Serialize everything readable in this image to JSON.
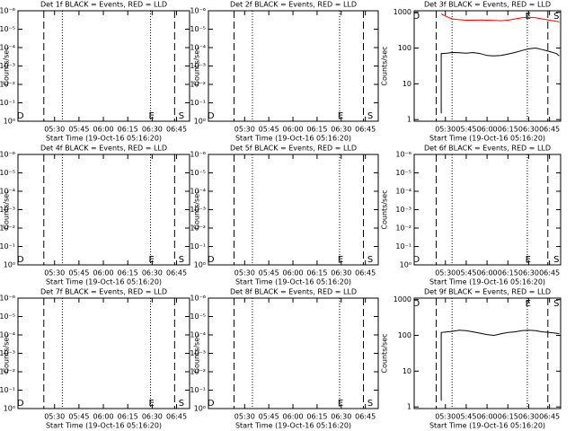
{
  "chart_data": [
    {
      "type": "line",
      "title": "Det 1f BLACK = Events, RED = LLD",
      "xlabel": "Start Time (19-Oct-16 05:16:20)",
      "ylabel": "Counts/sec",
      "log_scale": true,
      "xlim": [
        307.5,
        413
      ],
      "xticks": [
        {
          "value": 330,
          "label": "05:30"
        },
        {
          "value": 345,
          "label": "05:45"
        },
        {
          "value": 360,
          "label": "06:00"
        },
        {
          "value": 375,
          "label": "06:15"
        },
        {
          "value": 390,
          "label": "06:30"
        },
        {
          "value": 405,
          "label": "06:45"
        }
      ],
      "ylim": [
        1,
        1e-06
      ],
      "yticks": [
        {
          "value": 1,
          "label": "10⁰"
        },
        {
          "value": 0.1,
          "label": "10⁻¹"
        },
        {
          "value": 0.01,
          "label": "10⁻²"
        },
        {
          "value": 0.001,
          "label": "10⁻³"
        },
        {
          "value": 0.0001,
          "label": "10⁻⁴"
        },
        {
          "value": 1e-05,
          "label": "10⁻⁵"
        },
        {
          "value": 1e-06,
          "label": "10⁻⁶"
        }
      ],
      "vlines": [
        {
          "x": 323.4,
          "style": "dashed"
        },
        {
          "x": 334.8,
          "style": "dotted"
        },
        {
          "x": 389,
          "style": "dotted"
        },
        {
          "x": 403.8,
          "style": "dashed"
        }
      ],
      "marker_position": "bottom",
      "markers": [
        {
          "text": "D",
          "x": 309
        },
        {
          "text": "E",
          "x": 389.6
        },
        {
          "text": "S",
          "x": 408
        }
      ]
    },
    {
      "type": "line",
      "title": "Det 2f BLACK = Events, RED = LLD",
      "xlabel": "Start Time (19-Oct-16 05:16:20)",
      "ylabel": "Counts/sec",
      "log_scale": true,
      "xlim": [
        307.5,
        413
      ],
      "xticks": [
        {
          "value": 330,
          "label": "05:30"
        },
        {
          "value": 345,
          "label": "05:45"
        },
        {
          "value": 360,
          "label": "06:00"
        },
        {
          "value": 375,
          "label": "06:15"
        },
        {
          "value": 390,
          "label": "06:30"
        },
        {
          "value": 405,
          "label": "06:45"
        }
      ],
      "ylim": [
        1,
        1e-06
      ],
      "yticks": [
        {
          "value": 1,
          "label": "10⁰"
        },
        {
          "value": 0.1,
          "label": "10⁻¹"
        },
        {
          "value": 0.01,
          "label": "10⁻²"
        },
        {
          "value": 0.001,
          "label": "10⁻³"
        },
        {
          "value": 0.0001,
          "label": "10⁻⁴"
        },
        {
          "value": 1e-05,
          "label": "10⁻⁵"
        },
        {
          "value": 1e-06,
          "label": "10⁻⁶"
        }
      ],
      "vlines": [
        {
          "x": 323.4,
          "style": "dashed"
        },
        {
          "x": 334.8,
          "style": "dotted"
        },
        {
          "x": 389,
          "style": "dotted"
        },
        {
          "x": 403.8,
          "style": "dashed"
        }
      ],
      "marker_position": "bottom",
      "markers": [
        {
          "text": "D",
          "x": 309
        },
        {
          "text": "E",
          "x": 389.6
        },
        {
          "text": "S",
          "x": 408
        }
      ]
    },
    {
      "type": "line",
      "title": "Det 3f BLACK = Events, RED = LLD",
      "xlabel": "Start Time (19-Oct-16 05:16:20)",
      "ylabel": "Counts/sec",
      "log_scale": true,
      "xlim": [
        307.5,
        413
      ],
      "xticks": [
        {
          "value": 330,
          "label": "05:30"
        },
        {
          "value": 345,
          "label": "05:45"
        },
        {
          "value": 360,
          "label": "06:00"
        },
        {
          "value": 375,
          "label": "06:15"
        },
        {
          "value": 390,
          "label": "06:30"
        },
        {
          "value": 405,
          "label": "06:45"
        }
      ],
      "ylim": [
        0.9,
        1100
      ],
      "yticks": [
        1,
        10,
        100,
        1000
      ],
      "vlines": [
        {
          "x": 323.4,
          "style": "dashed"
        },
        {
          "x": 334.8,
          "style": "dotted"
        },
        {
          "x": 389,
          "style": "dotted"
        },
        {
          "x": 403.8,
          "style": "dashed"
        }
      ],
      "marker_position": "top",
      "markers": [
        {
          "text": "D",
          "x": 309
        },
        {
          "text": "E",
          "x": 389.6
        },
        {
          "text": "S",
          "x": 410
        }
      ],
      "x": [
        327,
        327,
        331,
        335,
        340,
        345,
        350,
        355,
        360,
        365,
        370,
        375,
        380,
        385,
        390,
        395,
        400,
        405,
        410,
        412
      ],
      "series": [
        {
          "name": "Events",
          "color": "#000000",
          "values": [
            1.5,
            70,
            72,
            75,
            74,
            72,
            75,
            70,
            62,
            60,
            62,
            68,
            75,
            85,
            95,
            100,
            90,
            80,
            70,
            60
          ]
        },
        {
          "name": "LLD",
          "color": "#ff0000",
          "values": [
            null,
            900,
            750,
            650,
            620,
            600,
            600,
            610,
            600,
            590,
            580,
            600,
            650,
            700,
            720,
            700,
            650,
            600,
            560,
            540
          ]
        }
      ]
    },
    {
      "type": "line",
      "title": "Det 4f BLACK = Events, RED = LLD",
      "xlabel": "Start Time (19-Oct-16 05:16:20)",
      "ylabel": "Counts/sec",
      "log_scale": true,
      "xlim": [
        307.5,
        413
      ],
      "xticks": [
        {
          "value": 330,
          "label": "05:30"
        },
        {
          "value": 345,
          "label": "05:45"
        },
        {
          "value": 360,
          "label": "06:00"
        },
        {
          "value": 375,
          "label": "06:15"
        },
        {
          "value": 390,
          "label": "06:30"
        },
        {
          "value": 405,
          "label": "06:45"
        }
      ],
      "ylim": [
        1,
        1e-06
      ],
      "yticks": [
        {
          "value": 1,
          "label": "10⁰"
        },
        {
          "value": 0.1,
          "label": "10⁻¹"
        },
        {
          "value": 0.01,
          "label": "10⁻²"
        },
        {
          "value": 0.001,
          "label": "10⁻³"
        },
        {
          "value": 0.0001,
          "label": "10⁻⁴"
        },
        {
          "value": 1e-05,
          "label": "10⁻⁵"
        },
        {
          "value": 1e-06,
          "label": "10⁻⁶"
        }
      ],
      "vlines": [
        {
          "x": 323.4,
          "style": "dashed"
        },
        {
          "x": 334.8,
          "style": "dotted"
        },
        {
          "x": 389,
          "style": "dotted"
        },
        {
          "x": 403.8,
          "style": "dashed"
        }
      ],
      "marker_position": "bottom",
      "markers": [
        {
          "text": "D",
          "x": 309
        },
        {
          "text": "E",
          "x": 389.6
        },
        {
          "text": "S",
          "x": 408
        }
      ]
    },
    {
      "type": "line",
      "title": "Det 5f BLACK = Events, RED = LLD",
      "xlabel": "Start Time (19-Oct-16 05:16:20)",
      "ylabel": "Counts/sec",
      "log_scale": true,
      "xlim": [
        307.5,
        413
      ],
      "xticks": [
        {
          "value": 330,
          "label": "05:30"
        },
        {
          "value": 345,
          "label": "05:45"
        },
        {
          "value": 360,
          "label": "06:00"
        },
        {
          "value": 375,
          "label": "06:15"
        },
        {
          "value": 390,
          "label": "06:30"
        },
        {
          "value": 405,
          "label": "06:45"
        }
      ],
      "ylim": [
        1,
        1e-06
      ],
      "yticks": [
        {
          "value": 1,
          "label": "10⁰"
        },
        {
          "value": 0.1,
          "label": "10⁻¹"
        },
        {
          "value": 0.01,
          "label": "10⁻²"
        },
        {
          "value": 0.001,
          "label": "10⁻³"
        },
        {
          "value": 0.0001,
          "label": "10⁻⁴"
        },
        {
          "value": 1e-05,
          "label": "10⁻⁵"
        },
        {
          "value": 1e-06,
          "label": "10⁻⁶"
        }
      ],
      "vlines": [
        {
          "x": 323.4,
          "style": "dashed"
        },
        {
          "x": 334.8,
          "style": "dotted"
        },
        {
          "x": 389,
          "style": "dotted"
        },
        {
          "x": 403.8,
          "style": "dashed"
        }
      ],
      "marker_position": "bottom",
      "markers": [
        {
          "text": "D",
          "x": 309
        },
        {
          "text": "E",
          "x": 389.6
        },
        {
          "text": "S",
          "x": 408
        }
      ]
    },
    {
      "type": "line",
      "title": "Det 6f BLACK = Events, RED = LLD",
      "xlabel": "Start Time (19-Oct-16 05:16:20)",
      "ylabel": "Counts/sec",
      "log_scale": true,
      "xlim": [
        307.5,
        413
      ],
      "xticks": [
        {
          "value": 330,
          "label": "05:30"
        },
        {
          "value": 345,
          "label": "05:45"
        },
        {
          "value": 360,
          "label": "06:00"
        },
        {
          "value": 375,
          "label": "06:15"
        },
        {
          "value": 390,
          "label": "06:30"
        },
        {
          "value": 405,
          "label": "06:45"
        }
      ],
      "ylim": [
        1,
        1e-06
      ],
      "yticks": [
        {
          "value": 1,
          "label": "10⁰"
        },
        {
          "value": 0.1,
          "label": "10⁻¹"
        },
        {
          "value": 0.01,
          "label": "10⁻²"
        },
        {
          "value": 0.001,
          "label": "10⁻³"
        },
        {
          "value": 0.0001,
          "label": "10⁻⁴"
        },
        {
          "value": 1e-05,
          "label": "10⁻⁵"
        },
        {
          "value": 1e-06,
          "label": "10⁻⁶"
        }
      ],
      "vlines": [
        {
          "x": 323.4,
          "style": "dashed"
        },
        {
          "x": 334.8,
          "style": "dotted"
        },
        {
          "x": 389,
          "style": "dotted"
        },
        {
          "x": 403.8,
          "style": "dashed"
        }
      ],
      "marker_position": "bottom",
      "markers": [
        {
          "text": "D",
          "x": 309
        },
        {
          "text": "E",
          "x": 389.6
        },
        {
          "text": "S",
          "x": 410
        }
      ]
    },
    {
      "type": "line",
      "title": "Det 7f BLACK = Events, RED = LLD",
      "xlabel": "Start Time (19-Oct-16 05:16:20)",
      "ylabel": "Counts/sec",
      "log_scale": true,
      "xlim": [
        307.5,
        413
      ],
      "xticks": [
        {
          "value": 330,
          "label": "05:30"
        },
        {
          "value": 345,
          "label": "05:45"
        },
        {
          "value": 360,
          "label": "06:00"
        },
        {
          "value": 375,
          "label": "06:15"
        },
        {
          "value": 390,
          "label": "06:30"
        },
        {
          "value": 405,
          "label": "06:45"
        }
      ],
      "ylim": [
        1,
        1e-06
      ],
      "yticks": [
        {
          "value": 1,
          "label": "10⁰"
        },
        {
          "value": 0.1,
          "label": "10⁻¹"
        },
        {
          "value": 0.01,
          "label": "10⁻²"
        },
        {
          "value": 0.001,
          "label": "10⁻³"
        },
        {
          "value": 0.0001,
          "label": "10⁻⁴"
        },
        {
          "value": 1e-05,
          "label": "10⁻⁵"
        },
        {
          "value": 1e-06,
          "label": "10⁻⁶"
        }
      ],
      "vlines": [
        {
          "x": 323.4,
          "style": "dashed"
        },
        {
          "x": 334.8,
          "style": "dotted"
        },
        {
          "x": 389,
          "style": "dotted"
        },
        {
          "x": 403.8,
          "style": "dashed"
        }
      ],
      "marker_position": "bottom",
      "markers": [
        {
          "text": "D",
          "x": 309
        },
        {
          "text": "E",
          "x": 389.6
        },
        {
          "text": "S",
          "x": 408
        }
      ]
    },
    {
      "type": "line",
      "title": "Det 8f BLACK = Events, RED = LLD",
      "xlabel": "Start Time (19-Oct-16 05:16:20)",
      "ylabel": "Counts/sec",
      "log_scale": true,
      "xlim": [
        307.5,
        413
      ],
      "xticks": [
        {
          "value": 330,
          "label": "05:30"
        },
        {
          "value": 345,
          "label": "05:45"
        },
        {
          "value": 360,
          "label": "06:00"
        },
        {
          "value": 375,
          "label": "06:15"
        },
        {
          "value": 390,
          "label": "06:30"
        },
        {
          "value": 405,
          "label": "06:45"
        }
      ],
      "ylim": [
        1,
        1e-06
      ],
      "yticks": [
        {
          "value": 1,
          "label": "10⁰"
        },
        {
          "value": 0.1,
          "label": "10⁻¹"
        },
        {
          "value": 0.01,
          "label": "10⁻²"
        },
        {
          "value": 0.001,
          "label": "10⁻³"
        },
        {
          "value": 0.0001,
          "label": "10⁻⁴"
        },
        {
          "value": 1e-05,
          "label": "10⁻⁵"
        },
        {
          "value": 1e-06,
          "label": "10⁻⁶"
        }
      ],
      "vlines": [
        {
          "x": 323.4,
          "style": "dashed"
        },
        {
          "x": 334.8,
          "style": "dotted"
        },
        {
          "x": 389,
          "style": "dotted"
        },
        {
          "x": 403.8,
          "style": "dashed"
        }
      ],
      "marker_position": "bottom",
      "markers": [
        {
          "text": "D",
          "x": 309
        },
        {
          "text": "E",
          "x": 389.6
        },
        {
          "text": "S",
          "x": 408
        }
      ]
    },
    {
      "type": "line",
      "title": "Det 9f BLACK = Events, RED = LLD",
      "xlabel": "Start Time (19-Oct-16 05:16:20)",
      "ylabel": "Counts/sec",
      "log_scale": true,
      "xlim": [
        307.5,
        413
      ],
      "xticks": [
        {
          "value": 330,
          "label": "05:30"
        },
        {
          "value": 345,
          "label": "05:45"
        },
        {
          "value": 360,
          "label": "06:00"
        },
        {
          "value": 375,
          "label": "06:15"
        },
        {
          "value": 390,
          "label": "06:30"
        },
        {
          "value": 405,
          "label": "06:45"
        }
      ],
      "ylim": [
        0.9,
        1100
      ],
      "yticks": [
        1,
        10,
        100,
        1000
      ],
      "vlines": [
        {
          "x": 323.4,
          "style": "dashed"
        },
        {
          "x": 334.8,
          "style": "dotted"
        },
        {
          "x": 389,
          "style": "dotted"
        },
        {
          "x": 403.8,
          "style": "dashed"
        }
      ],
      "marker_position": "top",
      "markers": [
        {
          "text": "D",
          "x": 309
        },
        {
          "text": "E",
          "x": 389.6
        },
        {
          "text": "S",
          "x": 410
        }
      ],
      "x": [
        327,
        327,
        331,
        335,
        340,
        345,
        350,
        355,
        360,
        365,
        370,
        375,
        380,
        385,
        390,
        395,
        400,
        405,
        410,
        412
      ],
      "series": [
        {
          "name": "Events",
          "color": "#000000",
          "values": [
            1.5,
            120,
            125,
            130,
            140,
            135,
            125,
            115,
            105,
            100,
            110,
            120,
            125,
            135,
            140,
            135,
            125,
            120,
            115,
            110
          ]
        }
      ]
    }
  ]
}
